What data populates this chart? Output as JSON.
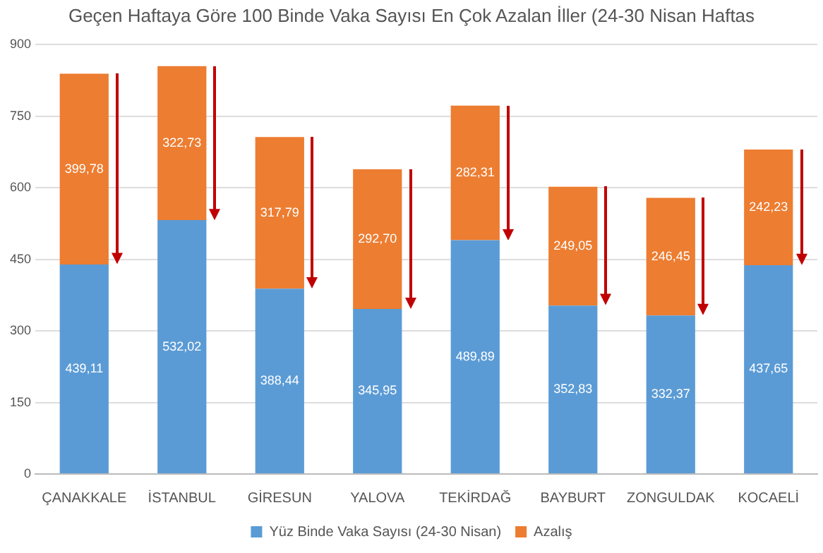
{
  "chart_data": {
    "type": "bar",
    "title": "Geçen Haftaya Göre 100 Binde Vaka Sayısı En Çok Azalan İller (24-30 Nisan Haftas",
    "categories": [
      "ÇANAKKALE",
      "İSTANBUL",
      "GİRESUN",
      "YALOVA",
      "TEKİRDAĞ",
      "BAYBURT",
      "ZONGULDAK",
      "KOCAELİ"
    ],
    "stacked": true,
    "ylim": [
      0,
      900
    ],
    "yticks": [
      0,
      150,
      300,
      450,
      600,
      750,
      900
    ],
    "grid": "y",
    "legend": "bottom",
    "series": [
      {
        "name": "Yüz Binde Vaka Sayısı (24-30 Nisan)",
        "color": "#5b9bd5",
        "values": [
          439.11,
          532.02,
          388.44,
          345.95,
          489.89,
          352.83,
          332.37,
          437.65
        ],
        "value_labels": [
          "439,11",
          "532,02",
          "388,44",
          "345,95",
          "489,89",
          "352,83",
          "332,37",
          "437,65"
        ]
      },
      {
        "name": "Azalış",
        "color": "#ed7d31",
        "values": [
          399.78,
          322.73,
          317.79,
          292.7,
          282.31,
          249.05,
          246.45,
          242.23
        ],
        "value_labels": [
          "399,78",
          "322,73",
          "317,79",
          "292,70",
          "282,31",
          "249,05",
          "246,45",
          "242,23"
        ]
      }
    ]
  }
}
